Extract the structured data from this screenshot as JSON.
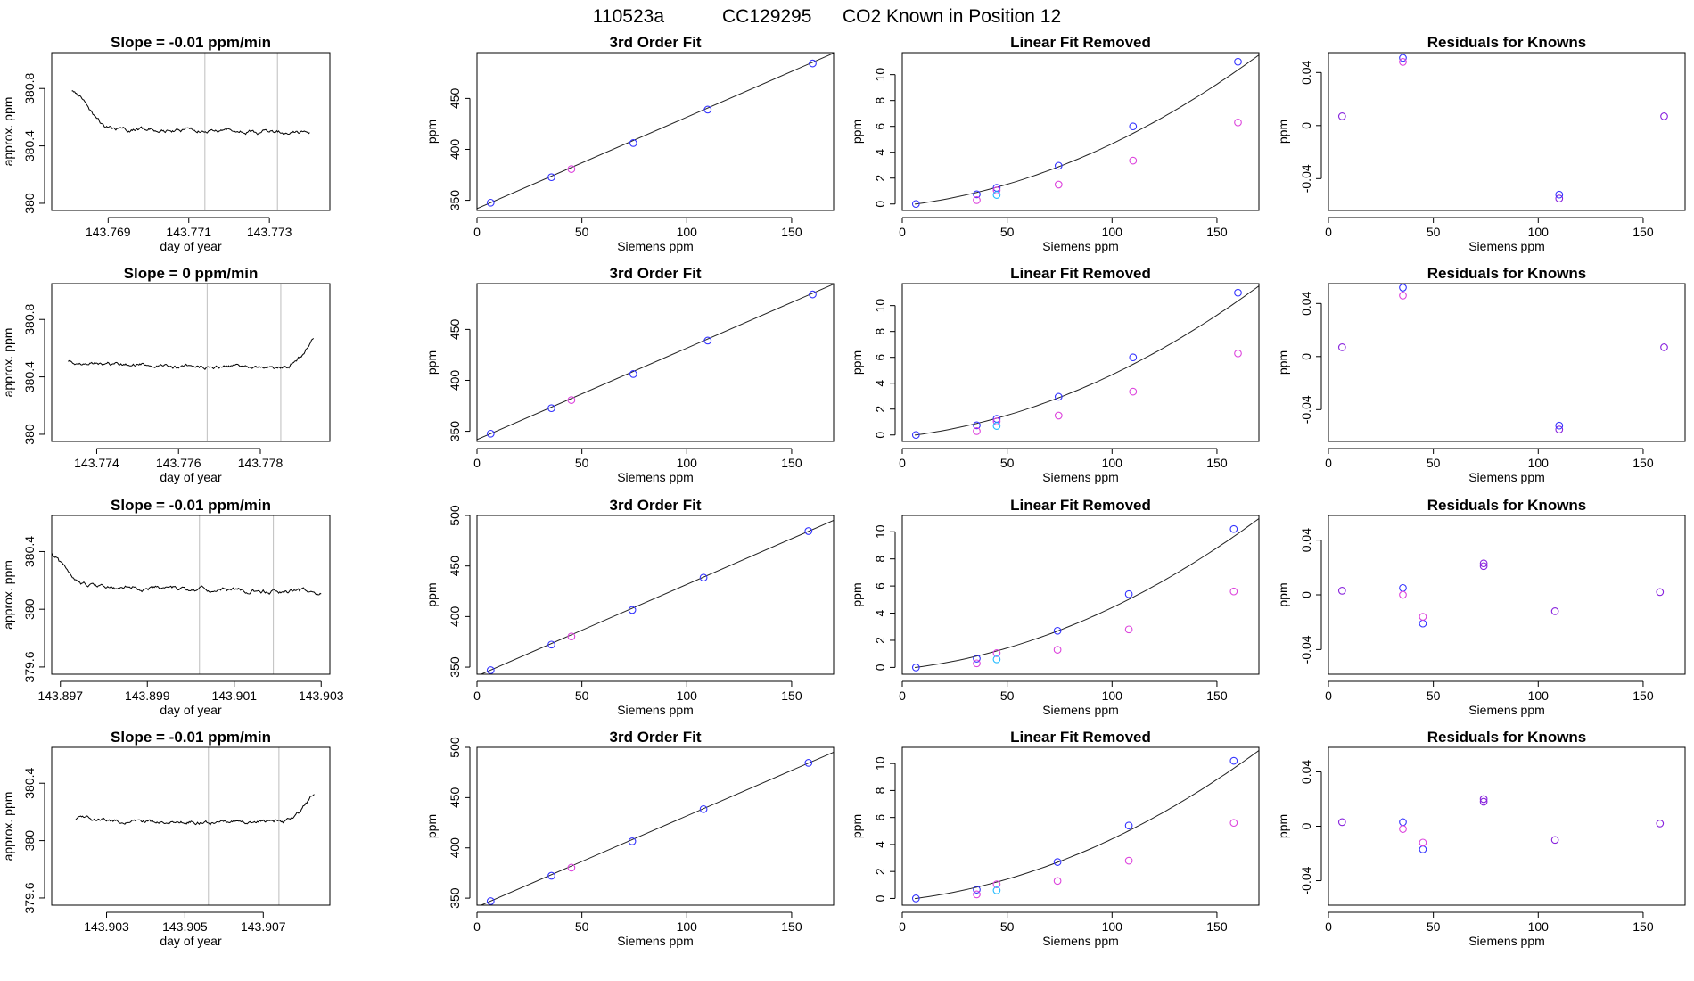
{
  "figure_title": {
    "run": "110523a",
    "cylinder": "CC129295",
    "description": "CO2 Known in Position  12"
  },
  "colors": {
    "trace": "#000000",
    "fit_line": "#222222",
    "vline": "#bebebe",
    "blue": "#3333ff",
    "magenta": "#dd44dd",
    "cyan": "#22bbff",
    "purple": "#8822dd"
  },
  "chart_data": [
    {
      "type": "line",
      "panel": "time-series",
      "row": 1,
      "title": "Slope =  -0.01  ppm/min",
      "xlabel": "day of year",
      "ylabel": "approx. ppm",
      "xlim": [
        143.7676,
        143.7745
      ],
      "xticks": [
        143.769,
        143.771,
        143.773
      ],
      "ylim": [
        379.95,
        381.05
      ],
      "yticks": [
        380.0,
        380.4,
        380.8
      ],
      "vlines": [
        143.7714,
        143.7732
      ],
      "start": 143.7681,
      "end": 143.774,
      "curve": [
        [
          0,
          380.78
        ],
        [
          0.05,
          380.73
        ],
        [
          0.1,
          380.6
        ],
        [
          0.14,
          380.52
        ],
        [
          0.2,
          380.52
        ],
        [
          1,
          380.49
        ]
      ],
      "noise": 0.012,
      "seed": 1
    },
    {
      "type": "scatter",
      "panel": "fit",
      "row": 1,
      "title": "3rd Order Fit",
      "xlabel": "Siemens ppm",
      "ylabel": "ppm",
      "xlim": [
        0,
        170
      ],
      "xticks": [
        0,
        50,
        100,
        150
      ],
      "ylim": [
        340,
        495
      ],
      "yticks": [
        350,
        400,
        450
      ],
      "fit_line": [
        [
          0,
          341.8
        ],
        [
          170,
          494.5
        ]
      ],
      "series": [
        {
          "color": "blue",
          "points": [
            [
              6.5,
              347.6
            ],
            [
              35.5,
              372.7
            ],
            [
              74.5,
              406.2
            ],
            [
              110,
              439.0
            ],
            [
              160,
              484.4
            ]
          ]
        },
        {
          "color": "magenta",
          "points": [
            [
              45,
              380.6
            ]
          ]
        }
      ]
    },
    {
      "type": "scatter",
      "panel": "linear-removed",
      "row": 1,
      "title": "Linear Fit Removed",
      "xlabel": "Siemens ppm",
      "ylabel": "ppm",
      "xlim": [
        0,
        170
      ],
      "xticks": [
        0,
        50,
        100,
        150
      ],
      "ylim": [
        -0.5,
        11.7
      ],
      "yticks": [
        0,
        2,
        4,
        6,
        8,
        10
      ],
      "fit_coef": [
        0.000295,
        0.02222
      ],
      "series": [
        {
          "color": "blue",
          "points": [
            [
              6.5,
              0.0
            ],
            [
              35.5,
              0.75
            ],
            [
              45,
              1.25
            ],
            [
              74.5,
              2.95
            ],
            [
              110,
              6.0
            ],
            [
              160,
              11.0
            ]
          ]
        },
        {
          "color": "magenta",
          "points": [
            [
              35.5,
              0.3
            ],
            [
              45,
              1.05
            ],
            [
              74.5,
              1.5
            ],
            [
              110,
              3.35
            ],
            [
              160,
              6.3
            ]
          ]
        },
        {
          "color": "cyan",
          "points": [
            [
              45,
              0.7
            ]
          ]
        }
      ]
    },
    {
      "type": "scatter",
      "panel": "residuals",
      "row": 1,
      "title": "Residuals for Knowns",
      "xlabel": "Siemens ppm",
      "ylabel": "ppm",
      "xlim": [
        0,
        170
      ],
      "xticks": [
        0,
        50,
        100,
        150
      ],
      "ylim": [
        -0.064,
        0.055
      ],
      "yticks": [
        -0.04,
        0.0,
        0.04
      ],
      "series": [
        {
          "color": "purple",
          "points": [
            [
              6.5,
              0.007
            ],
            [
              160,
              0.007
            ],
            [
              110,
              -0.055
            ]
          ]
        },
        {
          "color": "blue",
          "points": [
            [
              35.5,
              0.051
            ],
            [
              110,
              -0.052
            ]
          ]
        },
        {
          "color": "magenta",
          "points": [
            [
              35.5,
              0.048
            ]
          ]
        }
      ]
    },
    {
      "type": "line",
      "panel": "time-series",
      "row": 2,
      "title": "Slope =  0  ppm/min",
      "xlabel": "day of year",
      "ylabel": "approx. ppm",
      "xlim": [
        143.7729,
        143.7797
      ],
      "xticks": [
        143.774,
        143.776,
        143.778
      ],
      "ylim": [
        379.95,
        381.05
      ],
      "yticks": [
        380.0,
        380.4,
        380.8
      ],
      "vlines": [
        143.7767,
        143.7785
      ],
      "start": 143.7733,
      "end": 143.7793,
      "curve": [
        [
          0,
          380.5
        ],
        [
          0.5,
          380.47
        ],
        [
          0.9,
          380.47
        ],
        [
          0.95,
          380.55
        ],
        [
          1,
          380.67
        ]
      ],
      "noise": 0.011,
      "seed": 2
    },
    {
      "type": "scatter",
      "panel": "fit",
      "row": 2,
      "title": "3rd Order Fit",
      "xlabel": "Siemens ppm",
      "ylabel": "ppm",
      "xlim": [
        0,
        170
      ],
      "xticks": [
        0,
        50,
        100,
        150
      ],
      "ylim": [
        340,
        495
      ],
      "yticks": [
        350,
        400,
        450
      ],
      "fit_line": [
        [
          0,
          341.8
        ],
        [
          170,
          494.5
        ]
      ],
      "series": [
        {
          "color": "blue",
          "points": [
            [
              6.5,
              347.6
            ],
            [
              35.5,
              372.7
            ],
            [
              74.5,
              406.2
            ],
            [
              110,
              439.0
            ],
            [
              160,
              484.4
            ]
          ]
        },
        {
          "color": "magenta",
          "points": [
            [
              45,
              380.6
            ]
          ]
        }
      ]
    },
    {
      "type": "scatter",
      "panel": "linear-removed",
      "row": 2,
      "title": "Linear Fit Removed",
      "xlabel": "Siemens ppm",
      "ylabel": "ppm",
      "xlim": [
        0,
        170
      ],
      "xticks": [
        0,
        50,
        100,
        150
      ],
      "ylim": [
        -0.5,
        11.7
      ],
      "yticks": [
        0,
        2,
        4,
        6,
        8,
        10
      ],
      "fit_coef": [
        0.000295,
        0.02222
      ],
      "series": [
        {
          "color": "blue",
          "points": [
            [
              6.5,
              0.0
            ],
            [
              35.5,
              0.75
            ],
            [
              45,
              1.25
            ],
            [
              74.5,
              2.95
            ],
            [
              110,
              6.0
            ],
            [
              160,
              11.0
            ]
          ]
        },
        {
          "color": "magenta",
          "points": [
            [
              35.5,
              0.3
            ],
            [
              45,
              1.05
            ],
            [
              74.5,
              1.5
            ],
            [
              110,
              3.35
            ],
            [
              160,
              6.3
            ]
          ]
        },
        {
          "color": "cyan",
          "points": [
            [
              45,
              0.7
            ]
          ]
        }
      ]
    },
    {
      "type": "scatter",
      "panel": "residuals",
      "row": 2,
      "title": "Residuals for Knowns",
      "xlabel": "Siemens ppm",
      "ylabel": "ppm",
      "xlim": [
        0,
        170
      ],
      "xticks": [
        0,
        50,
        100,
        150
      ],
      "ylim": [
        -0.064,
        0.055
      ],
      "yticks": [
        -0.04,
        0.0,
        0.04
      ],
      "series": [
        {
          "color": "purple",
          "points": [
            [
              6.5,
              0.007
            ],
            [
              160,
              0.007
            ],
            [
              110,
              -0.055
            ]
          ]
        },
        {
          "color": "blue",
          "points": [
            [
              35.5,
              0.052
            ],
            [
              110,
              -0.052
            ]
          ]
        },
        {
          "color": "magenta",
          "points": [
            [
              35.5,
              0.046
            ]
          ]
        }
      ]
    },
    {
      "type": "line",
      "panel": "time-series",
      "row": 3,
      "title": "Slope =  -0.01  ppm/min",
      "xlabel": "day of year",
      "ylabel": "approx. ppm",
      "xlim": [
        143.8968,
        143.9032
      ],
      "xticks": [
        143.897,
        143.899,
        143.901,
        143.903
      ],
      "ylim": [
        379.55,
        380.65
      ],
      "yticks": [
        379.6,
        380.0,
        380.4
      ],
      "vlines": [
        143.9002,
        143.9019
      ],
      "start": 143.8968,
      "end": 143.903,
      "curve": [
        [
          0,
          380.38
        ],
        [
          0.05,
          380.28
        ],
        [
          0.1,
          380.17
        ],
        [
          0.2,
          380.15
        ],
        [
          1,
          380.12
        ]
      ],
      "noise": 0.014,
      "seed": 3
    },
    {
      "type": "scatter",
      "panel": "fit",
      "row": 3,
      "title": "3rd Order Fit",
      "xlabel": "Siemens ppm",
      "ylabel": "ppm",
      "xlim": [
        0,
        170
      ],
      "xticks": [
        0,
        50,
        100,
        150
      ],
      "ylim": [
        343,
        500
      ],
      "yticks": [
        350,
        400,
        450,
        500
      ],
      "fit_line": [
        [
          0,
          341.2
        ],
        [
          170,
          495.2
        ]
      ],
      "series": [
        {
          "color": "blue",
          "points": [
            [
              6.5,
              347.0
            ],
            [
              35.5,
              372.3
            ],
            [
              74,
              406.5
            ],
            [
              108,
              438.5
            ],
            [
              158,
              484.6
            ]
          ]
        },
        {
          "color": "magenta",
          "points": [
            [
              45,
              380.3
            ]
          ]
        }
      ]
    },
    {
      "type": "scatter",
      "panel": "linear-removed",
      "row": 3,
      "title": "Linear Fit Removed",
      "xlabel": "Siemens ppm",
      "ylabel": "ppm",
      "xlim": [
        0,
        170
      ],
      "xticks": [
        0,
        50,
        100,
        150
      ],
      "ylim": [
        -0.5,
        11.2
      ],
      "yticks": [
        0,
        2,
        4,
        6,
        8,
        10
      ],
      "fit_coef": [
        0.000285,
        0.0205
      ],
      "series": [
        {
          "color": "blue",
          "points": [
            [
              6.5,
              0.0
            ],
            [
              35.5,
              0.65
            ],
            [
              74,
              2.7
            ],
            [
              108,
              5.4
            ],
            [
              158,
              10.2
            ]
          ]
        },
        {
          "color": "magenta",
          "points": [
            [
              35.5,
              0.3
            ],
            [
              45,
              1.05
            ],
            [
              74,
              1.3
            ],
            [
              108,
              2.8
            ],
            [
              158,
              5.6
            ]
          ]
        },
        {
          "color": "cyan",
          "points": [
            [
              45,
              0.6
            ]
          ]
        }
      ]
    },
    {
      "type": "scatter",
      "panel": "residuals",
      "row": 3,
      "title": "Residuals for Knowns",
      "xlabel": "Siemens ppm",
      "ylabel": "ppm",
      "xlim": [
        0,
        170
      ],
      "xticks": [
        0,
        50,
        100,
        150
      ],
      "ylim": [
        -0.058,
        0.058
      ],
      "yticks": [
        -0.04,
        0.0,
        0.04
      ],
      "series": [
        {
          "color": "purple",
          "points": [
            [
              6.5,
              0.003
            ],
            [
              74,
              0.023
            ],
            [
              74,
              0.021
            ],
            [
              108,
              -0.012
            ],
            [
              158,
              0.002
            ]
          ]
        },
        {
          "color": "blue",
          "points": [
            [
              35.5,
              0.005
            ],
            [
              45,
              -0.021
            ]
          ]
        },
        {
          "color": "magenta",
          "points": [
            [
              35.5,
              0.0
            ],
            [
              45,
              -0.016
            ]
          ]
        }
      ]
    },
    {
      "type": "line",
      "panel": "time-series",
      "row": 4,
      "title": "Slope =  -0.01  ppm/min",
      "xlabel": "day of year",
      "ylabel": "approx. ppm",
      "xlim": [
        143.9016,
        143.9087
      ],
      "xticks": [
        143.903,
        143.905,
        143.907
      ],
      "ylim": [
        379.55,
        380.65
      ],
      "yticks": [
        379.6,
        380.0,
        380.4
      ],
      "vlines": [
        143.9056,
        143.9074
      ],
      "start": 143.9022,
      "end": 143.9083,
      "curve": [
        [
          0,
          380.15
        ],
        [
          0.3,
          380.13
        ],
        [
          0.88,
          380.13
        ],
        [
          0.94,
          380.2
        ],
        [
          1,
          380.33
        ]
      ],
      "noise": 0.011,
      "seed": 4
    },
    {
      "type": "scatter",
      "panel": "fit",
      "row": 4,
      "title": "3rd Order Fit",
      "xlabel": "Siemens ppm",
      "ylabel": "ppm",
      "xlim": [
        0,
        170
      ],
      "xticks": [
        0,
        50,
        100,
        150
      ],
      "ylim": [
        343,
        500
      ],
      "yticks": [
        350,
        400,
        450,
        500
      ],
      "fit_line": [
        [
          0,
          341.2
        ],
        [
          170,
          495.2
        ]
      ],
      "series": [
        {
          "color": "blue",
          "points": [
            [
              6.5,
              347.0
            ],
            [
              35.5,
              372.3
            ],
            [
              74,
              406.5
            ],
            [
              108,
              438.5
            ],
            [
              158,
              484.6
            ]
          ]
        },
        {
          "color": "magenta",
          "points": [
            [
              45,
              380.3
            ]
          ]
        }
      ]
    },
    {
      "type": "scatter",
      "panel": "linear-removed",
      "row": 4,
      "title": "Linear Fit Removed",
      "xlabel": "Siemens ppm",
      "ylabel": "ppm",
      "xlim": [
        0,
        170
      ],
      "xticks": [
        0,
        50,
        100,
        150
      ],
      "ylim": [
        -0.5,
        11.2
      ],
      "yticks": [
        0,
        2,
        4,
        6,
        8,
        10
      ],
      "fit_coef": [
        0.000285,
        0.0205
      ],
      "series": [
        {
          "color": "blue",
          "points": [
            [
              6.5,
              0.0
            ],
            [
              35.5,
              0.65
            ],
            [
              74,
              2.7
            ],
            [
              108,
              5.4
            ],
            [
              158,
              10.2
            ]
          ]
        },
        {
          "color": "magenta",
          "points": [
            [
              35.5,
              0.3
            ],
            [
              45,
              1.05
            ],
            [
              74,
              1.3
            ],
            [
              108,
              2.8
            ],
            [
              158,
              5.6
            ]
          ]
        },
        {
          "color": "cyan",
          "points": [
            [
              45,
              0.6
            ]
          ]
        }
      ]
    },
    {
      "type": "scatter",
      "panel": "residuals",
      "row": 4,
      "title": "Residuals for Knowns",
      "xlabel": "Siemens ppm",
      "ylabel": "ppm",
      "xlim": [
        0,
        170
      ],
      "xticks": [
        0,
        50,
        100,
        150
      ],
      "ylim": [
        -0.058,
        0.058
      ],
      "yticks": [
        -0.04,
        0.0,
        0.04
      ],
      "series": [
        {
          "color": "purple",
          "points": [
            [
              6.5,
              0.003
            ],
            [
              74,
              0.02
            ],
            [
              74,
              0.018
            ],
            [
              108,
              -0.01
            ],
            [
              158,
              0.002
            ]
          ]
        },
        {
          "color": "blue",
          "points": [
            [
              35.5,
              0.003
            ],
            [
              45,
              -0.017
            ]
          ]
        },
        {
          "color": "magenta",
          "points": [
            [
              35.5,
              -0.002
            ],
            [
              45,
              -0.012
            ]
          ]
        }
      ]
    }
  ]
}
